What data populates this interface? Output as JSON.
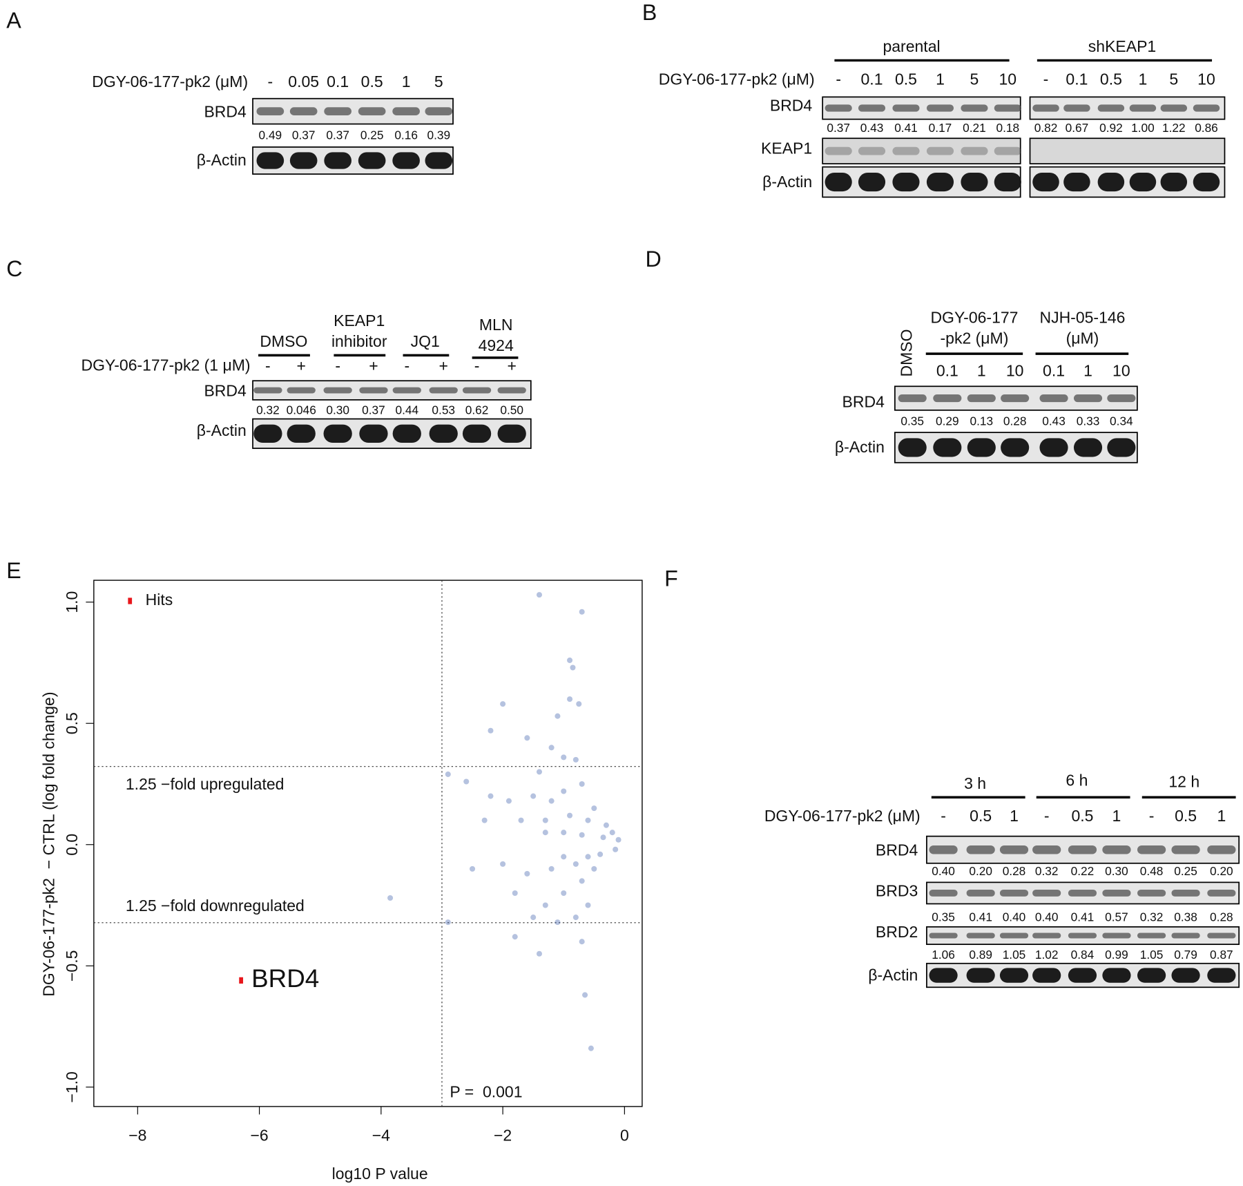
{
  "panels": [
    {
      "label": "A",
      "treatment": "DGY-06-177-pk2 (μM)",
      "lanes": [
        "-",
        "0.05",
        "0.1",
        "0.5",
        "1",
        "5"
      ],
      "blots": [
        {
          "name": "BRD4",
          "quant": [
            "0.49",
            "0.37",
            "0.37",
            "0.25",
            "0.16",
            "0.39"
          ]
        },
        {
          "name": "β-Actin"
        }
      ]
    },
    {
      "label": "B",
      "treatment": "DGY-06-177-pk2 (μM)",
      "groups": [
        {
          "label": [
            "parental"
          ]
        },
        {
          "label": [
            "shKEAP1"
          ]
        }
      ],
      "lanes": [
        "-",
        "0.1",
        "0.5",
        "1",
        "5",
        "10",
        "-",
        "0.1",
        "0.5",
        "1",
        "5",
        "10"
      ],
      "blots": [
        {
          "name": "BRD4",
          "quant": [
            "0.37",
            "0.43",
            "0.41",
            "0.17",
            "0.21",
            "0.18",
            "0.82",
            "0.67",
            "0.92",
            "1.00",
            "1.22",
            "0.86"
          ]
        },
        {
          "name": "KEAP1"
        },
        {
          "name": "β-Actin"
        }
      ]
    },
    {
      "label": "C",
      "treatment": "DGY-06-177-pk2 (1 μM)",
      "groups": [
        {
          "label": [
            "DMSO"
          ]
        },
        {
          "label": [
            "KEAP1",
            "inhibitor"
          ]
        },
        {
          "label": [
            "JQ1"
          ]
        },
        {
          "label": [
            "MLN",
            "4924"
          ]
        }
      ],
      "lanes": [
        "-",
        "+",
        "-",
        "+",
        "-",
        "+",
        "-",
        "+"
      ],
      "blots": [
        {
          "name": "BRD4",
          "quant": [
            "0.32",
            "0.046",
            "0.30",
            "0.37",
            "0.44",
            "0.53",
            "0.62",
            "0.50"
          ]
        },
        {
          "name": "β-Actin"
        }
      ]
    },
    {
      "label": "D",
      "groups": [
        {
          "label": [
            "DGY-06-177",
            "-pk2 (μM)"
          ]
        },
        {
          "label": [
            "NJH-05-146",
            "(μM)"
          ]
        }
      ],
      "lanes": [
        "DMSO",
        "0.1",
        "1",
        "10",
        "0.1",
        "1",
        "10"
      ],
      "blots": [
        {
          "name": "BRD4",
          "quant": [
            "0.35",
            "0.29",
            "0.13",
            "0.28",
            "0.43",
            "0.33",
            "0.34"
          ]
        },
        {
          "name": "β-Actin"
        }
      ]
    },
    {
      "label": "F",
      "treatment": "DGY-06-177-pk2 (μM)",
      "groups": [
        {
          "label": [
            "3 h"
          ]
        },
        {
          "label": [
            "6 h"
          ]
        },
        {
          "label": [
            "12 h"
          ]
        }
      ],
      "lanes": [
        "-",
        "0.5",
        "1",
        "-",
        "0.5",
        "1",
        "-",
        "0.5",
        "1"
      ],
      "blots": [
        {
          "name": "BRD4",
          "quant": [
            "0.40",
            "0.20",
            "0.28",
            "0.32",
            "0.22",
            "0.30",
            "0.48",
            "0.25",
            "0.20"
          ]
        },
        {
          "name": "BRD3",
          "quant": [
            "0.35",
            "0.41",
            "0.40",
            "0.40",
            "0.41",
            "0.57",
            "0.32",
            "0.38",
            "0.28"
          ]
        },
        {
          "name": "BRD2",
          "quant": [
            "1.06",
            "0.89",
            "1.05",
            "1.02",
            "0.84",
            "0.99",
            "1.05",
            "0.79",
            "0.87"
          ]
        },
        {
          "name": "β-Actin"
        }
      ]
    }
  ],
  "chart_data": {
    "type": "scatter",
    "panel_label": "E",
    "x_label": "log10 P value",
    "y_label": "DGY-06-177-pk2  − CTRL (log fold change)",
    "xlim": [
      -8.72,
      0.29
    ],
    "ylim": [
      -1.08,
      1.09
    ],
    "xticks": [
      {
        "value": -8,
        "label": "−8"
      },
      {
        "value": -6,
        "label": "−6"
      },
      {
        "value": -4,
        "label": "−4"
      },
      {
        "value": -2,
        "label": "−2"
      },
      0
    ],
    "yticks": [
      {
        "value": -1,
        "label": "−1.0"
      },
      {
        "value": -0.5,
        "label": "−0.5"
      },
      {
        "value": 0,
        "label": "0.0"
      },
      {
        "value": 0.5,
        "label": "0.5"
      },
      {
        "value": 1,
        "label": "1.0"
      }
    ],
    "hlines": [
      0.322,
      -0.322
    ],
    "vlines": [
      -3
    ],
    "annotations": [
      "1.25 −fold upregulated",
      "1.25 −fold downregulated",
      "P =  0.001"
    ],
    "series": [
      {
        "color": "#2a50a2",
        "x": [
          -1.4,
          -0.7,
          -0.9,
          -0.85,
          -2.0,
          -1.1,
          -0.9,
          -0.75,
          -2.2,
          -1.6,
          -1.2,
          -1.0,
          -0.8,
          -2.9,
          -2.6,
          -1.4,
          -2.2,
          -1.9,
          -1.5,
          -1.2,
          -1.0,
          -0.7,
          -0.5,
          -0.3,
          -0.2,
          -0.1,
          -0.6,
          -0.9,
          -1.3,
          -1.7,
          -2.3,
          -2.5,
          -2.0,
          -1.6,
          -1.2,
          -0.8,
          -0.4,
          -0.15,
          -1.8,
          -1.3,
          -1.0,
          -0.7,
          -0.5,
          -1.5,
          -1.1,
          -0.8,
          -0.6,
          -1.8,
          -1.4,
          -0.7,
          -3.85,
          -2.9,
          -0.65,
          -0.55,
          -1.3,
          -1.0,
          -0.7,
          -1.0,
          -0.6,
          -0.35
        ],
        "values": [
          1.03,
          0.96,
          0.76,
          0.73,
          0.58,
          0.53,
          0.6,
          0.58,
          0.47,
          0.44,
          0.4,
          0.36,
          0.35,
          0.29,
          0.26,
          0.3,
          0.2,
          0.18,
          0.2,
          0.18,
          0.22,
          0.25,
          0.15,
          0.08,
          0.05,
          0.02,
          0.1,
          0.12,
          0.1,
          0.1,
          0.1,
          -0.1,
          -0.08,
          -0.12,
          -0.1,
          -0.08,
          -0.04,
          -0.02,
          -0.2,
          -0.25,
          -0.2,
          -0.15,
          -0.1,
          -0.3,
          -0.32,
          -0.3,
          -0.25,
          -0.38,
          -0.45,
          -0.4,
          -0.22,
          -0.32,
          -0.62,
          -0.84,
          0.05,
          0.05,
          0.04,
          -0.05,
          -0.05,
          0.03
        ]
      },
      {
        "name": "Hits",
        "color": "#e8161b",
        "x": [
          -6.3
        ],
        "values": [
          -0.56
        ],
        "point_labels": [
          "BRD4"
        ]
      }
    ]
  }
}
